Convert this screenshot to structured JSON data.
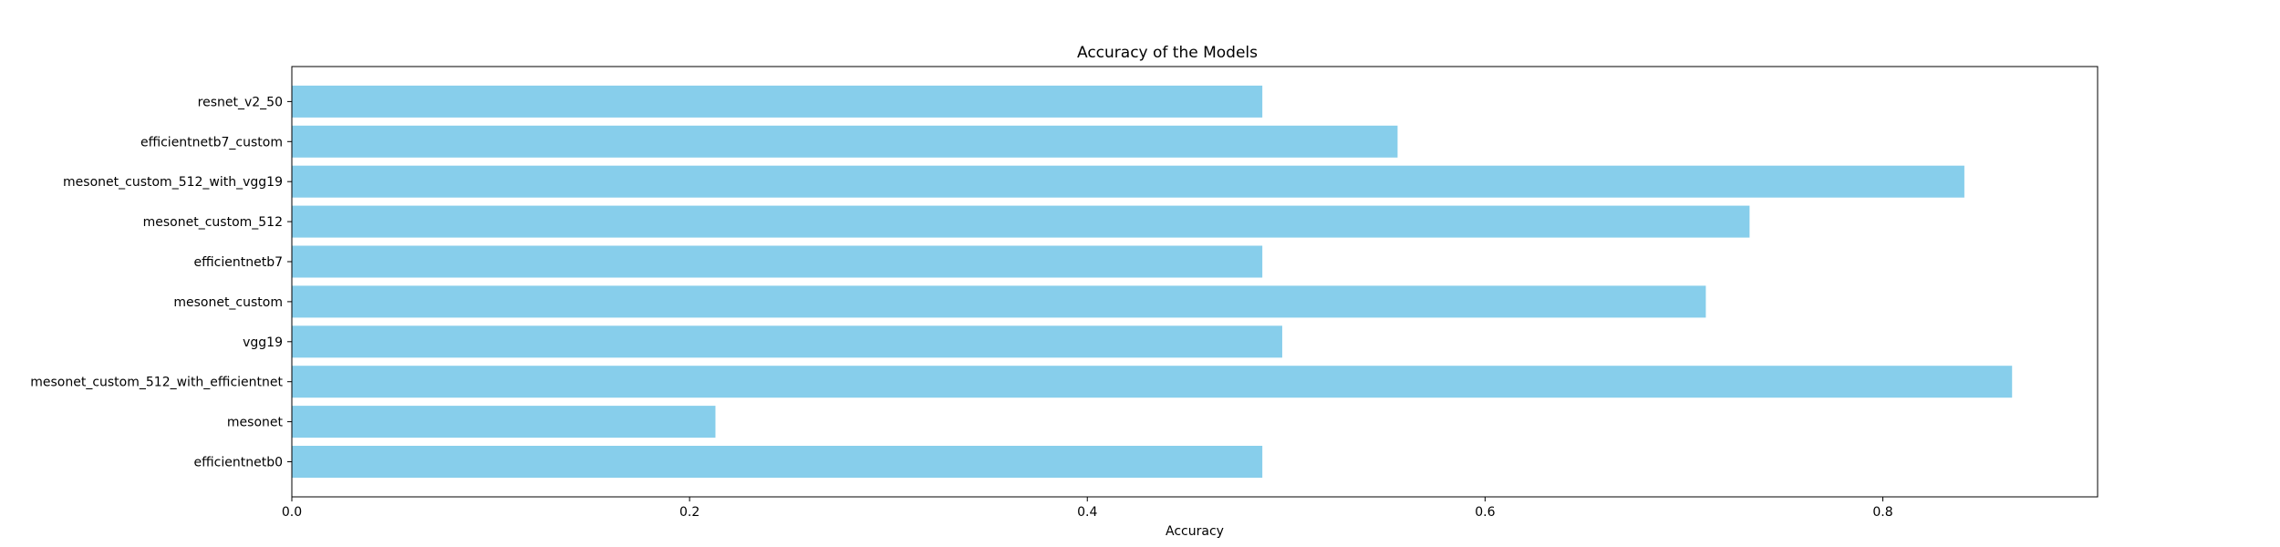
{
  "chart_data": {
    "type": "bar",
    "orientation": "horizontal",
    "title": "Accuracy of the Models",
    "xlabel": "Accuracy",
    "ylabel": "",
    "categories": [
      "efficientnetb0",
      "mesonet",
      "mesonet_custom_512_with_efficientnet",
      "vgg19",
      "mesonet_custom",
      "efficientnetb7",
      "mesonet_custom_512",
      "mesonet_custom_512_with_vgg19",
      "efficientnetb7_custom",
      "resnet_v2_50"
    ],
    "values": [
      0.488,
      0.213,
      0.865,
      0.498,
      0.711,
      0.488,
      0.733,
      0.841,
      0.556,
      0.488
    ],
    "xlim": [
      0,
      0.908
    ],
    "xticks": [
      0.0,
      0.2,
      0.4,
      0.6,
      0.8
    ],
    "xtick_labels": [
      "0.0",
      "0.2",
      "0.4",
      "0.6",
      "0.8"
    ],
    "bar_color": "#87ceeb",
    "grid": false,
    "legend": "none"
  }
}
